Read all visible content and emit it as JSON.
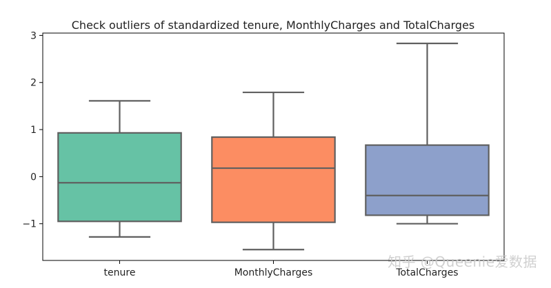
{
  "chart_data": {
    "type": "box",
    "title": "Check outliers of standardized tenure, MonthlyCharges and TotalCharges",
    "xlabel": "",
    "ylabel": "",
    "ylim": [
      -1.78,
      3.05
    ],
    "yticks": [
      3,
      2,
      1,
      0,
      -1
    ],
    "ytick_labels": [
      "3",
      "2",
      "1",
      "0",
      "−1"
    ],
    "grid": false,
    "series": [
      {
        "name": "tenure",
        "whisker_low": -1.28,
        "q1": -0.95,
        "median": -0.13,
        "q3": 0.93,
        "whisker_high": 1.61,
        "color": "#66c2a5"
      },
      {
        "name": "MonthlyCharges",
        "whisker_low": -1.55,
        "q1": -0.97,
        "median": 0.18,
        "q3": 0.84,
        "whisker_high": 1.79,
        "color": "#fc8d62"
      },
      {
        "name": "TotalCharges",
        "whisker_low": -1.0,
        "q1": -0.82,
        "median": -0.4,
        "q3": 0.67,
        "whisker_high": 2.83,
        "color": "#8da0cb"
      }
    ]
  },
  "watermark": "知乎 @Queenie爱数据"
}
